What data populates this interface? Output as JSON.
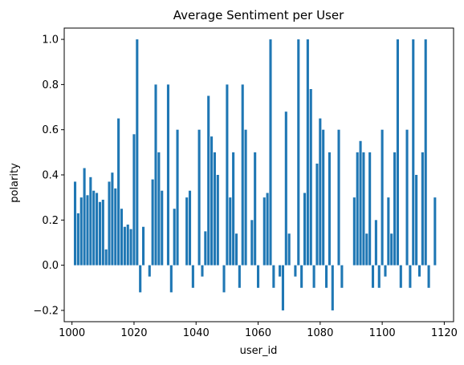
{
  "chart_data": {
    "type": "bar",
    "title": "Average Sentiment per User",
    "xlabel": "user_id",
    "ylabel": "polarity",
    "xlim": [
      997.5,
      1123
    ],
    "ylim": [
      -0.25,
      1.05
    ],
    "x_ticks": [
      1000,
      1020,
      1040,
      1060,
      1080,
      1100,
      1120
    ],
    "y_ticks": [
      -0.2,
      0.0,
      0.2,
      0.4,
      0.6,
      0.8,
      1.0
    ],
    "y_tick_labels": [
      "−0.2",
      "0.0",
      "0.2",
      "0.4",
      "0.6",
      "0.8",
      "1.0"
    ],
    "grid": false,
    "bar_color": "#1f77b4",
    "bars": [
      {
        "x": 1001,
        "y": 0.37
      },
      {
        "x": 1002,
        "y": 0.23
      },
      {
        "x": 1003,
        "y": 0.3
      },
      {
        "x": 1004,
        "y": 0.43
      },
      {
        "x": 1005,
        "y": 0.31
      },
      {
        "x": 1006,
        "y": 0.39
      },
      {
        "x": 1007,
        "y": 0.33
      },
      {
        "x": 1008,
        "y": 0.32
      },
      {
        "x": 1009,
        "y": 0.28
      },
      {
        "x": 1010,
        "y": 0.29
      },
      {
        "x": 1011,
        "y": 0.07
      },
      {
        "x": 1012,
        "y": 0.37
      },
      {
        "x": 1013,
        "y": 0.41
      },
      {
        "x": 1014,
        "y": 0.34
      },
      {
        "x": 1015,
        "y": 0.65
      },
      {
        "x": 1016,
        "y": 0.25
      },
      {
        "x": 1017,
        "y": 0.17
      },
      {
        "x": 1018,
        "y": 0.18
      },
      {
        "x": 1019,
        "y": 0.16
      },
      {
        "x": 1020,
        "y": 0.58
      },
      {
        "x": 1021,
        "y": 1.0
      },
      {
        "x": 1022,
        "y": -0.12
      },
      {
        "x": 1023,
        "y": 0.17
      },
      {
        "x": 1025,
        "y": -0.05
      },
      {
        "x": 1026,
        "y": 0.38
      },
      {
        "x": 1027,
        "y": 0.8
      },
      {
        "x": 1028,
        "y": 0.5
      },
      {
        "x": 1029,
        "y": 0.33
      },
      {
        "x": 1031,
        "y": 0.8
      },
      {
        "x": 1032,
        "y": -0.12
      },
      {
        "x": 1033,
        "y": 0.25
      },
      {
        "x": 1034,
        "y": 0.6
      },
      {
        "x": 1037,
        "y": 0.3
      },
      {
        "x": 1038,
        "y": 0.33
      },
      {
        "x": 1039,
        "y": -0.1
      },
      {
        "x": 1041,
        "y": 0.6
      },
      {
        "x": 1042,
        "y": -0.05
      },
      {
        "x": 1043,
        "y": 0.15
      },
      {
        "x": 1044,
        "y": 0.75
      },
      {
        "x": 1045,
        "y": 0.57
      },
      {
        "x": 1046,
        "y": 0.5
      },
      {
        "x": 1047,
        "y": 0.4
      },
      {
        "x": 1049,
        "y": -0.12
      },
      {
        "x": 1050,
        "y": 0.8
      },
      {
        "x": 1051,
        "y": 0.3
      },
      {
        "x": 1052,
        "y": 0.5
      },
      {
        "x": 1053,
        "y": 0.14
      },
      {
        "x": 1054,
        "y": -0.1
      },
      {
        "x": 1055,
        "y": 0.8
      },
      {
        "x": 1056,
        "y": 0.6
      },
      {
        "x": 1058,
        "y": 0.2
      },
      {
        "x": 1059,
        "y": 0.5
      },
      {
        "x": 1060,
        "y": -0.1
      },
      {
        "x": 1062,
        "y": 0.3
      },
      {
        "x": 1063,
        "y": 0.32
      },
      {
        "x": 1064,
        "y": 1.0
      },
      {
        "x": 1065,
        "y": -0.1
      },
      {
        "x": 1067,
        "y": -0.05
      },
      {
        "x": 1068,
        "y": -0.2
      },
      {
        "x": 1069,
        "y": 0.68
      },
      {
        "x": 1070,
        "y": 0.14
      },
      {
        "x": 1072,
        "y": -0.05
      },
      {
        "x": 1073,
        "y": 1.0
      },
      {
        "x": 1074,
        "y": -0.1
      },
      {
        "x": 1075,
        "y": 0.32
      },
      {
        "x": 1076,
        "y": 1.0
      },
      {
        "x": 1077,
        "y": 0.78
      },
      {
        "x": 1078,
        "y": -0.1
      },
      {
        "x": 1079,
        "y": 0.45
      },
      {
        "x": 1080,
        "y": 0.65
      },
      {
        "x": 1081,
        "y": 0.6
      },
      {
        "x": 1082,
        "y": -0.1
      },
      {
        "x": 1083,
        "y": 0.5
      },
      {
        "x": 1084,
        "y": -0.2
      },
      {
        "x": 1086,
        "y": 0.6
      },
      {
        "x": 1087,
        "y": -0.1
      },
      {
        "x": 1091,
        "y": 0.3
      },
      {
        "x": 1092,
        "y": 0.5
      },
      {
        "x": 1093,
        "y": 0.55
      },
      {
        "x": 1094,
        "y": 0.5
      },
      {
        "x": 1095,
        "y": 0.14
      },
      {
        "x": 1096,
        "y": 0.5
      },
      {
        "x": 1097,
        "y": -0.1
      },
      {
        "x": 1098,
        "y": 0.2
      },
      {
        "x": 1099,
        "y": -0.1
      },
      {
        "x": 1100,
        "y": 0.6
      },
      {
        "x": 1101,
        "y": -0.05
      },
      {
        "x": 1102,
        "y": 0.3
      },
      {
        "x": 1103,
        "y": 0.14
      },
      {
        "x": 1104,
        "y": 0.5
      },
      {
        "x": 1105,
        "y": 1.0
      },
      {
        "x": 1106,
        "y": -0.1
      },
      {
        "x": 1108,
        "y": 0.6
      },
      {
        "x": 1109,
        "y": -0.1
      },
      {
        "x": 1110,
        "y": 1.0
      },
      {
        "x": 1111,
        "y": 0.4
      },
      {
        "x": 1112,
        "y": -0.05
      },
      {
        "x": 1113,
        "y": 0.5
      },
      {
        "x": 1114,
        "y": 1.0
      },
      {
        "x": 1115,
        "y": -0.1
      },
      {
        "x": 1117,
        "y": 0.3
      }
    ]
  }
}
